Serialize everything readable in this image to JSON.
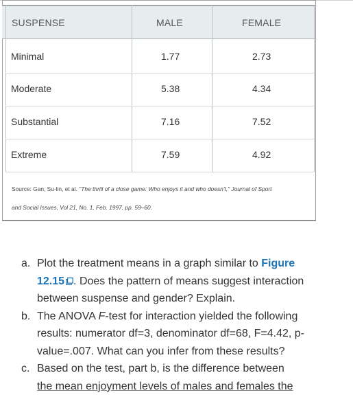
{
  "table": {
    "headers": [
      "SUSPENSE",
      "MALE",
      "FEMALE"
    ],
    "rows": [
      {
        "label": "Minimal",
        "male": "1.77",
        "female": "2.73"
      },
      {
        "label": "Moderate",
        "male": "5.38",
        "female": "4.34"
      },
      {
        "label": "Substantial",
        "male": "7.16",
        "female": "7.52"
      },
      {
        "label": "Extreme",
        "male": "7.59",
        "female": "4.92"
      }
    ],
    "source_prefix": "Source: Gan, Su-lin, et al. ",
    "source_title": "\"The thrill of a close game: Who enjoys it and who doesn't,\" Journal of Sport",
    "source_rest": "and Social Issues, Vol 21, No. 1, Feb. 1997, pp. 59–60."
  },
  "questions": {
    "a": {
      "letter": "a.",
      "text_before": "Plot the treatment means in a graph similar to ",
      "link": "Figure 12.15",
      "text_after": ". Does the pattern of means suggest interaction between suspense and gender? Explain."
    },
    "b": {
      "letter": "b.",
      "text_1": "The ANOVA ",
      "italic": "F",
      "text_2": "-test for interaction yielded the following results: numerator df=3, denominator df=68, F=4.42, p-value=.007. What can you infer from these results?"
    },
    "c": {
      "letter": "c.",
      "text": "Based on the test, part b, is the difference between",
      "text_cut": "the mean enjoyment levels of males and females the"
    }
  },
  "icons": {
    "external_link": "external-link-icon"
  },
  "colors": {
    "link": "#1a73b5",
    "header_bg": "#e7ecef"
  }
}
